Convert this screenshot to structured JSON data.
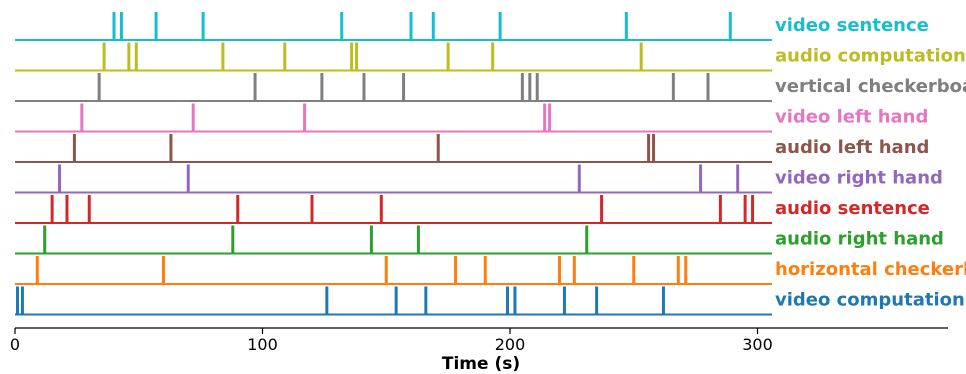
{
  "chart_data": {
    "type": "event-raster",
    "xlabel": "Time (s)",
    "xlim": [
      0,
      316
    ],
    "xticks": [
      0,
      100,
      200,
      300
    ],
    "grid": false,
    "legend": "none",
    "rows": [
      {
        "name": "video sentence",
        "color": "#17becf",
        "events": [
          40,
          43,
          57,
          76,
          132,
          160,
          169,
          196,
          247,
          289
        ]
      },
      {
        "name": "audio computation",
        "color": "#bcbd22",
        "events": [
          36,
          46,
          49,
          84,
          109,
          136,
          138,
          175,
          193,
          253
        ]
      },
      {
        "name": "vertical checkerboard",
        "color": "#7f7f7f",
        "events": [
          34,
          97,
          124,
          141,
          157,
          205,
          208,
          211,
          266,
          280
        ]
      },
      {
        "name": "video left hand",
        "color": "#e377c2",
        "events": [
          27,
          72,
          117,
          214,
          216
        ]
      },
      {
        "name": "audio left hand",
        "color": "#8c564b",
        "events": [
          24,
          63,
          171,
          256,
          258
        ]
      },
      {
        "name": "video right hand",
        "color": "#9467bd",
        "events": [
          18,
          70,
          228,
          277,
          292
        ]
      },
      {
        "name": "audio sentence",
        "color": "#d62728",
        "events": [
          15,
          21,
          30,
          90,
          120,
          148,
          237,
          285,
          295,
          298
        ]
      },
      {
        "name": "audio right hand",
        "color": "#2ca02c",
        "events": [
          12,
          88,
          144,
          163,
          231
        ]
      },
      {
        "name": "horizontal checkerboard",
        "color": "#ff7f0e",
        "events": [
          9,
          60,
          150,
          178,
          190,
          220,
          226,
          250,
          268,
          271
        ]
      },
      {
        "name": "video computation",
        "color": "#1f77b4",
        "events": [
          1,
          3,
          126,
          154,
          166,
          199,
          202,
          222,
          235,
          262
        ]
      }
    ]
  }
}
